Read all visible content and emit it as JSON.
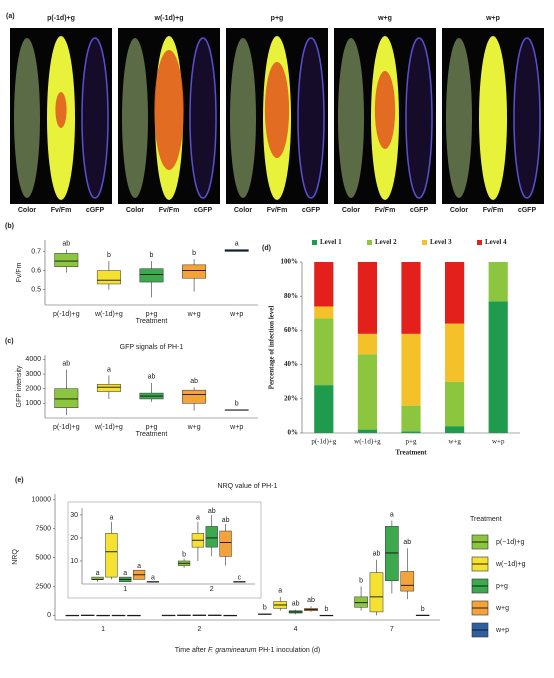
{
  "panel_a": {
    "label": "(a)",
    "groups": [
      {
        "title": "p(-1d)+g",
        "images": [
          "Color",
          "Fv/Fm",
          "cGFP"
        ]
      },
      {
        "title": "w(-1d)+g",
        "images": [
          "Color",
          "Fv/Fm",
          "cGFP"
        ]
      },
      {
        "title": "p+g",
        "images": [
          "Color",
          "Fv/Fm",
          "cGFP"
        ]
      },
      {
        "title": "w+g",
        "images": [
          "Color",
          "Fv/Fm",
          "cGFP"
        ]
      },
      {
        "title": "w+p",
        "images": [
          "Color",
          "Fv/Fm",
          "cGFP"
        ]
      }
    ]
  },
  "chart_data": [
    {
      "type": "box",
      "panel": "(b)",
      "ylabel": "Fv/Fm",
      "xlabel": "Treatment",
      "categories": [
        "p(-1d)+g",
        "w(-1d)+g",
        "p+g",
        "w+g",
        "w+p"
      ],
      "colors": [
        "#8cc63f",
        "#f5e130",
        "#3da94f",
        "#f4a23a",
        "#2e5f9e"
      ],
      "stats": [
        [
          0.59,
          0.62,
          0.65,
          0.69,
          0.71
        ],
        [
          0.5,
          0.53,
          0.55,
          0.6,
          0.65
        ],
        [
          0.46,
          0.54,
          0.58,
          0.61,
          0.65
        ],
        [
          0.49,
          0.56,
          0.6,
          0.63,
          0.66
        ],
        [
          0.7,
          0.7,
          0.705,
          0.71,
          0.71
        ]
      ],
      "letters": [
        "ab",
        "b",
        "b",
        "b",
        "a"
      ],
      "ylim": [
        0.42,
        0.76
      ],
      "yticks": [
        0.5,
        0.6,
        0.7
      ]
    },
    {
      "type": "box",
      "panel": "(c)",
      "title": "GFP signals of PH-1",
      "ylabel": "GFP intensity",
      "xlabel": "Treatment",
      "categories": [
        "p(-1d)+g",
        "w(-1d)+g",
        "p+g",
        "w+g",
        "w+p"
      ],
      "colors": [
        "#8cc63f",
        "#f5e130",
        "#3da94f",
        "#f4a23a",
        "#2e5f9e"
      ],
      "stats": [
        [
          200,
          700,
          1300,
          2000,
          3300
        ],
        [
          1300,
          1800,
          2100,
          2300,
          2900
        ],
        [
          1100,
          1300,
          1500,
          1700,
          2400
        ],
        [
          500,
          1000,
          1600,
          1900,
          2100
        ],
        [
          500,
          520,
          550,
          560,
          580
        ]
      ],
      "letters": [
        "ab",
        "a",
        "ab",
        "ab",
        "b"
      ],
      "ylim": [
        0,
        4300
      ],
      "yticks": [
        1000,
        2000,
        3000,
        4000
      ]
    },
    {
      "type": "stacked_bar",
      "panel": "(d)",
      "ylabel": "Percentage of infection level",
      "xlabel": "Treatment",
      "legend": "top",
      "categories": [
        "p(-1d)+g",
        "w(-1d)+g",
        "p+g",
        "w+g",
        "w+p"
      ],
      "series": [
        {
          "name": "Level 1",
          "color": "#1e9b4c",
          "values": [
            28,
            2,
            1,
            4,
            77
          ]
        },
        {
          "name": "Level 2",
          "color": "#8cc63f",
          "values": [
            39,
            44,
            15,
            26,
            23
          ]
        },
        {
          "name": "Level 3",
          "color": "#f5c12b",
          "values": [
            7,
            12,
            42,
            34,
            0
          ]
        },
        {
          "name": "Level 4",
          "color": "#e3201b",
          "values": [
            26,
            42,
            42,
            36,
            0
          ]
        }
      ],
      "ylim": [
        0,
        100
      ],
      "yticks": [
        {
          "value": 0,
          "label": "0%"
        },
        {
          "value": 20,
          "label": "20%"
        },
        {
          "value": 40,
          "label": "40%"
        },
        {
          "value": 60,
          "label": "60%"
        },
        {
          "value": 80,
          "label": "80%"
        },
        {
          "value": 100,
          "label": "100%"
        }
      ]
    },
    {
      "type": "box",
      "panel": "(e)",
      "title": "NRQ value of PH-1",
      "ylabel": "NRQ",
      "xlabel_parts": [
        "Time after ",
        "F. graminearum",
        " PH-1 inoculation (d)"
      ],
      "legend": "right",
      "legend_title": "Treatment",
      "categories": [
        "1",
        "2",
        "4",
        "7"
      ],
      "series": [
        {
          "name": "p(−1d)+g",
          "color": "#8cc63f",
          "stats": [
            [
              1,
              2,
              2,
              3,
              3
            ],
            [
              7,
              8,
              9,
              10,
              11
            ],
            [
              50,
              80,
              100,
              130,
              160
            ],
            [
              400,
              700,
              1100,
              1600,
              2500
            ]
          ],
          "letters": [
            null,
            null,
            "b",
            "b"
          ]
        },
        {
          "name": "w(−1d)+g",
          "color": "#f5e130",
          "stats": [
            [
              2,
              3,
              14,
              22,
              27
            ],
            [
              10,
              16,
              19,
              22,
              27
            ],
            [
              400,
              600,
              900,
              1200,
              1600
            ],
            [
              0,
              300,
              1600,
              3700,
              4800
            ]
          ],
          "letters": [
            null,
            null,
            "a",
            "ab"
          ]
        },
        {
          "name": "p+g",
          "color": "#3da94f",
          "stats": [
            [
              1,
              1,
              2,
              3,
              3
            ],
            [
              12,
              16,
              20,
              25,
              30
            ],
            [
              100,
              200,
              300,
              400,
              500
            ],
            [
              1900,
              3000,
              5400,
              7700,
              8200
            ]
          ],
          "letters": [
            null,
            null,
            "ab",
            "a"
          ]
        },
        {
          "name": "w+g",
          "color": "#f4a23a",
          "stats": [
            [
              2,
              2,
              4,
              6,
              6
            ],
            [
              8,
              12,
              18,
              23,
              26
            ],
            [
              300,
              400,
              500,
              600,
              800
            ],
            [
              1400,
              2100,
              2600,
              3800,
              5800
            ]
          ],
          "letters": [
            null,
            null,
            "ab",
            "ab"
          ]
        },
        {
          "name": "w+p",
          "color": "#2e5f9e",
          "stats": [
            [
              1,
              1,
              1,
              1,
              1
            ],
            [
              1,
              1,
              1,
              1,
              1
            ],
            [
              0,
              0,
              0,
              5,
              10
            ],
            [
              0,
              0,
              10,
              20,
              30
            ]
          ],
          "letters": [
            null,
            null,
            "b",
            "b"
          ]
        }
      ],
      "ylim": [
        -400,
        10500
      ],
      "yticks": [
        0,
        2500,
        5000,
        7500,
        10000
      ]
    },
    {
      "type": "box",
      "inset": true,
      "categories": [
        "1",
        "2"
      ],
      "series": [
        {
          "color": "#8cc63f",
          "stats": [
            [
              1,
              2,
              2,
              3,
              3
            ],
            [
              7,
              8,
              9,
              10,
              11
            ]
          ],
          "letters": [
            "a",
            "b"
          ]
        },
        {
          "color": "#f5e130",
          "stats": [
            [
              2,
              3,
              14,
              22,
              27
            ],
            [
              10,
              16,
              19,
              22,
              27
            ]
          ],
          "letters": [
            "a",
            "a"
          ]
        },
        {
          "color": "#3da94f",
          "stats": [
            [
              1,
              1,
              2,
              3,
              3
            ],
            [
              12,
              16,
              20,
              25,
              30
            ]
          ],
          "letters": [
            "a",
            "ab"
          ]
        },
        {
          "color": "#f4a23a",
          "stats": [
            [
              2,
              2,
              4,
              6,
              6
            ],
            [
              8,
              12,
              18,
              23,
              26
            ]
          ],
          "letters": [
            "a",
            "ab"
          ]
        },
        {
          "color": "#2e5f9e",
          "stats": [
            [
              1,
              1,
              1,
              1,
              1
            ],
            [
              1,
              1,
              1,
              1,
              1
            ]
          ],
          "letters": [
            "a",
            "c"
          ]
        }
      ],
      "ylim": [
        0,
        33
      ],
      "yticks": [
        10,
        20,
        30
      ]
    }
  ]
}
